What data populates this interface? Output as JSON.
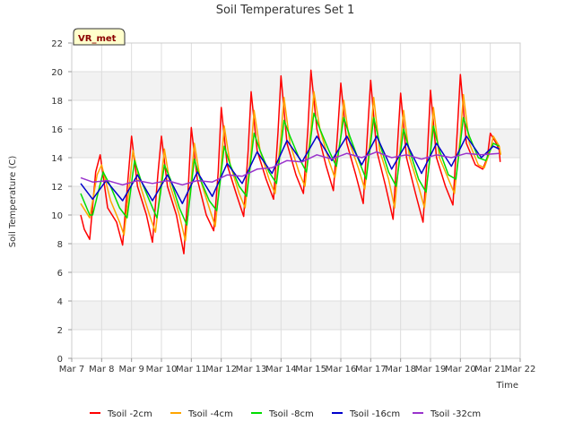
{
  "chart_data": {
    "type": "line",
    "title": "Soil Temperatures Set 1",
    "xlabel": "Time",
    "ylabel": "Soil Temperature (C)",
    "badge": "VR_met",
    "xlim": [
      7,
      22
    ],
    "ylim": [
      0,
      22
    ],
    "x_ticks": [
      {
        "value": 7,
        "label": "Mar 7"
      },
      {
        "value": 8,
        "label": "Mar 8"
      },
      {
        "value": 9,
        "label": "Mar 9"
      },
      {
        "value": 10,
        "label": "Mar 10"
      },
      {
        "value": 11,
        "label": "Mar 11"
      },
      {
        "value": 12,
        "label": "Mar 12"
      },
      {
        "value": 13,
        "label": "Mar 13"
      },
      {
        "value": 14,
        "label": "Mar 14"
      },
      {
        "value": 15,
        "label": "Mar 15"
      },
      {
        "value": 16,
        "label": "Mar 16"
      },
      {
        "value": 17,
        "label": "Mar 17"
      },
      {
        "value": 18,
        "label": "Mar 18"
      },
      {
        "value": 19,
        "label": "Mar 19"
      },
      {
        "value": 20,
        "label": "Mar 20"
      },
      {
        "value": 21,
        "label": "Mar 21"
      },
      {
        "value": 22,
        "label": "Mar 22"
      }
    ],
    "y_ticks": [
      {
        "value": 0,
        "label": "0"
      },
      {
        "value": 2,
        "label": "2"
      },
      {
        "value": 4,
        "label": "4"
      },
      {
        "value": 6,
        "label": "6"
      },
      {
        "value": 8,
        "label": "8"
      },
      {
        "value": 10,
        "label": "10"
      },
      {
        "value": 12,
        "label": "12"
      },
      {
        "value": 14,
        "label": "14"
      },
      {
        "value": 16,
        "label": "16"
      },
      {
        "value": 18,
        "label": "18"
      },
      {
        "value": 20,
        "label": "20"
      },
      {
        "value": 22,
        "label": "22"
      }
    ],
    "grid": true,
    "legend_position": "bottom",
    "series": [
      {
        "name": "Tsoil -2cm",
        "color": "#ff0000",
        "x": [
          7.3,
          7.42,
          7.6,
          7.8,
          7.95,
          8.2,
          8.5,
          8.7,
          8.88,
          9.0,
          9.2,
          9.5,
          9.7,
          9.88,
          10.0,
          10.2,
          10.5,
          10.75,
          10.9,
          11.0,
          11.2,
          11.5,
          11.75,
          11.9,
          12.0,
          12.2,
          12.5,
          12.75,
          12.9,
          13.0,
          13.2,
          13.5,
          13.75,
          13.9,
          14.0,
          14.2,
          14.5,
          14.75,
          14.9,
          15.0,
          15.2,
          15.5,
          15.75,
          15.9,
          16.0,
          16.2,
          16.5,
          16.75,
          16.9,
          17.0,
          17.2,
          17.5,
          17.75,
          17.9,
          18.0,
          18.2,
          18.5,
          18.75,
          18.9,
          19.0,
          19.2,
          19.5,
          19.75,
          19.9,
          20.0,
          20.2,
          20.5,
          20.75,
          20.9,
          21.0,
          21.2,
          21.3,
          21.33
        ],
        "values": [
          10.0,
          9.0,
          8.3,
          13.0,
          14.2,
          10.5,
          9.5,
          7.9,
          12.5,
          15.5,
          12.0,
          10.0,
          8.1,
          12.8,
          15.5,
          12.0,
          10.0,
          7.3,
          12.0,
          16.1,
          12.5,
          10.0,
          8.9,
          13.0,
          17.5,
          13.5,
          11.5,
          9.9,
          14.5,
          18.6,
          14.5,
          12.5,
          11.1,
          15.8,
          19.7,
          15.0,
          12.8,
          11.5,
          16.0,
          20.1,
          16.0,
          13.5,
          11.7,
          16.0,
          19.2,
          15.0,
          12.8,
          10.8,
          16.0,
          19.4,
          14.5,
          12.0,
          9.7,
          15.0,
          18.5,
          14.0,
          11.5,
          9.5,
          14.5,
          18.7,
          14.0,
          12.0,
          10.7,
          16.0,
          19.8,
          15.0,
          13.5,
          13.2,
          14.0,
          15.7,
          15.0,
          14.5,
          13.7
        ]
      },
      {
        "name": "Tsoil -4cm",
        "color": "#ffa500",
        "x": [
          7.3,
          7.6,
          7.85,
          8.0,
          8.3,
          8.6,
          8.75,
          8.95,
          9.05,
          9.3,
          9.6,
          9.8,
          10.0,
          10.1,
          10.3,
          10.6,
          10.8,
          11.0,
          11.1,
          11.3,
          11.6,
          11.8,
          12.0,
          12.1,
          12.3,
          12.6,
          12.8,
          13.0,
          13.1,
          13.3,
          13.6,
          13.8,
          14.0,
          14.1,
          14.3,
          14.6,
          14.8,
          15.0,
          15.1,
          15.3,
          15.6,
          15.8,
          16.0,
          16.1,
          16.3,
          16.6,
          16.8,
          17.0,
          17.1,
          17.3,
          17.6,
          17.8,
          18.0,
          18.1,
          18.3,
          18.6,
          18.8,
          19.0,
          19.1,
          19.3,
          19.6,
          19.8,
          20.0,
          20.1,
          20.3,
          20.6,
          20.8,
          21.0,
          21.1,
          21.3,
          21.35
        ],
        "values": [
          10.8,
          9.8,
          12.8,
          13.5,
          11.0,
          9.5,
          8.6,
          12.5,
          14.5,
          12.0,
          10.0,
          8.8,
          12.5,
          14.6,
          12.0,
          10.0,
          8.2,
          12.5,
          15.0,
          12.5,
          10.5,
          9.2,
          13.5,
          16.2,
          13.5,
          11.5,
          10.5,
          14.5,
          17.3,
          14.5,
          12.5,
          11.5,
          15.5,
          18.2,
          15.0,
          13.0,
          12.0,
          16.0,
          18.6,
          16.0,
          13.8,
          12.6,
          15.5,
          18.0,
          15.0,
          13.2,
          11.8,
          15.5,
          18.2,
          14.5,
          12.5,
          10.5,
          15.0,
          17.3,
          14.0,
          12.0,
          10.5,
          14.5,
          17.5,
          14.0,
          12.5,
          11.5,
          15.5,
          18.4,
          15.0,
          13.5,
          13.3,
          14.5,
          15.5,
          14.8,
          14.2
        ]
      },
      {
        "name": "Tsoil -8cm",
        "color": "#00dd00",
        "x": [
          7.3,
          7.6,
          7.7,
          8.05,
          8.3,
          8.6,
          8.85,
          9.1,
          9.3,
          9.6,
          9.85,
          10.1,
          10.3,
          10.6,
          10.85,
          11.1,
          11.3,
          11.6,
          11.85,
          12.1,
          12.3,
          12.6,
          12.85,
          13.1,
          13.3,
          13.6,
          13.85,
          14.1,
          14.3,
          14.6,
          14.85,
          15.1,
          15.3,
          15.6,
          15.85,
          16.1,
          16.3,
          16.6,
          16.85,
          17.1,
          17.3,
          17.6,
          17.85,
          18.1,
          18.3,
          18.6,
          18.85,
          19.1,
          19.3,
          19.6,
          19.85,
          20.1,
          20.3,
          20.6,
          20.85,
          21.1,
          21.3
        ],
        "values": [
          11.5,
          10.0,
          10.0,
          13.0,
          12.0,
          10.5,
          9.8,
          13.8,
          12.5,
          11.0,
          9.8,
          13.5,
          12.5,
          10.5,
          9.3,
          13.9,
          12.5,
          11.0,
          10.3,
          14.8,
          13.5,
          12.0,
          11.3,
          15.7,
          14.5,
          13.0,
          12.2,
          16.6,
          15.5,
          14.0,
          13.0,
          17.1,
          16.0,
          14.5,
          13.4,
          16.8,
          15.5,
          13.8,
          12.5,
          16.8,
          15.0,
          13.0,
          12.0,
          16.0,
          14.5,
          12.5,
          11.6,
          16.2,
          14.5,
          12.8,
          12.5,
          16.8,
          15.5,
          14.0,
          13.8,
          15.0,
          14.8
        ]
      },
      {
        "name": "Tsoil -16cm",
        "color": "#0000cc",
        "x": [
          7.3,
          7.7,
          8.15,
          8.7,
          9.2,
          9.7,
          10.2,
          10.7,
          11.2,
          11.7,
          12.2,
          12.7,
          13.2,
          13.7,
          14.2,
          14.7,
          15.2,
          15.7,
          16.2,
          16.7,
          17.2,
          17.7,
          18.2,
          18.7,
          19.2,
          19.7,
          20.2,
          20.7,
          21.1,
          21.3
        ],
        "values": [
          12.2,
          11.1,
          12.4,
          11.0,
          12.8,
          11.0,
          12.8,
          10.8,
          13.0,
          11.3,
          13.6,
          12.2,
          14.4,
          12.9,
          15.2,
          13.7,
          15.5,
          13.8,
          15.5,
          13.5,
          15.5,
          13.2,
          15.0,
          12.9,
          15.0,
          13.4,
          15.5,
          14.0,
          14.8,
          14.6
        ]
      },
      {
        "name": "Tsoil -32cm",
        "color": "#9933cc",
        "x": [
          7.3,
          7.7,
          8.2,
          8.7,
          9.2,
          9.7,
          10.2,
          10.7,
          11.2,
          11.7,
          12.2,
          12.7,
          13.2,
          13.7,
          14.2,
          14.7,
          15.2,
          15.7,
          16.2,
          16.7,
          17.2,
          17.7,
          18.2,
          18.7,
          19.2,
          19.7,
          20.2,
          20.7,
          21.3
        ],
        "values": [
          12.6,
          12.3,
          12.4,
          12.1,
          12.4,
          12.2,
          12.4,
          12.1,
          12.4,
          12.3,
          12.8,
          12.7,
          13.2,
          13.3,
          13.8,
          13.7,
          14.2,
          13.9,
          14.3,
          14.0,
          14.4,
          14.0,
          14.2,
          13.9,
          14.2,
          14.0,
          14.3,
          14.2,
          14.3
        ]
      }
    ]
  }
}
